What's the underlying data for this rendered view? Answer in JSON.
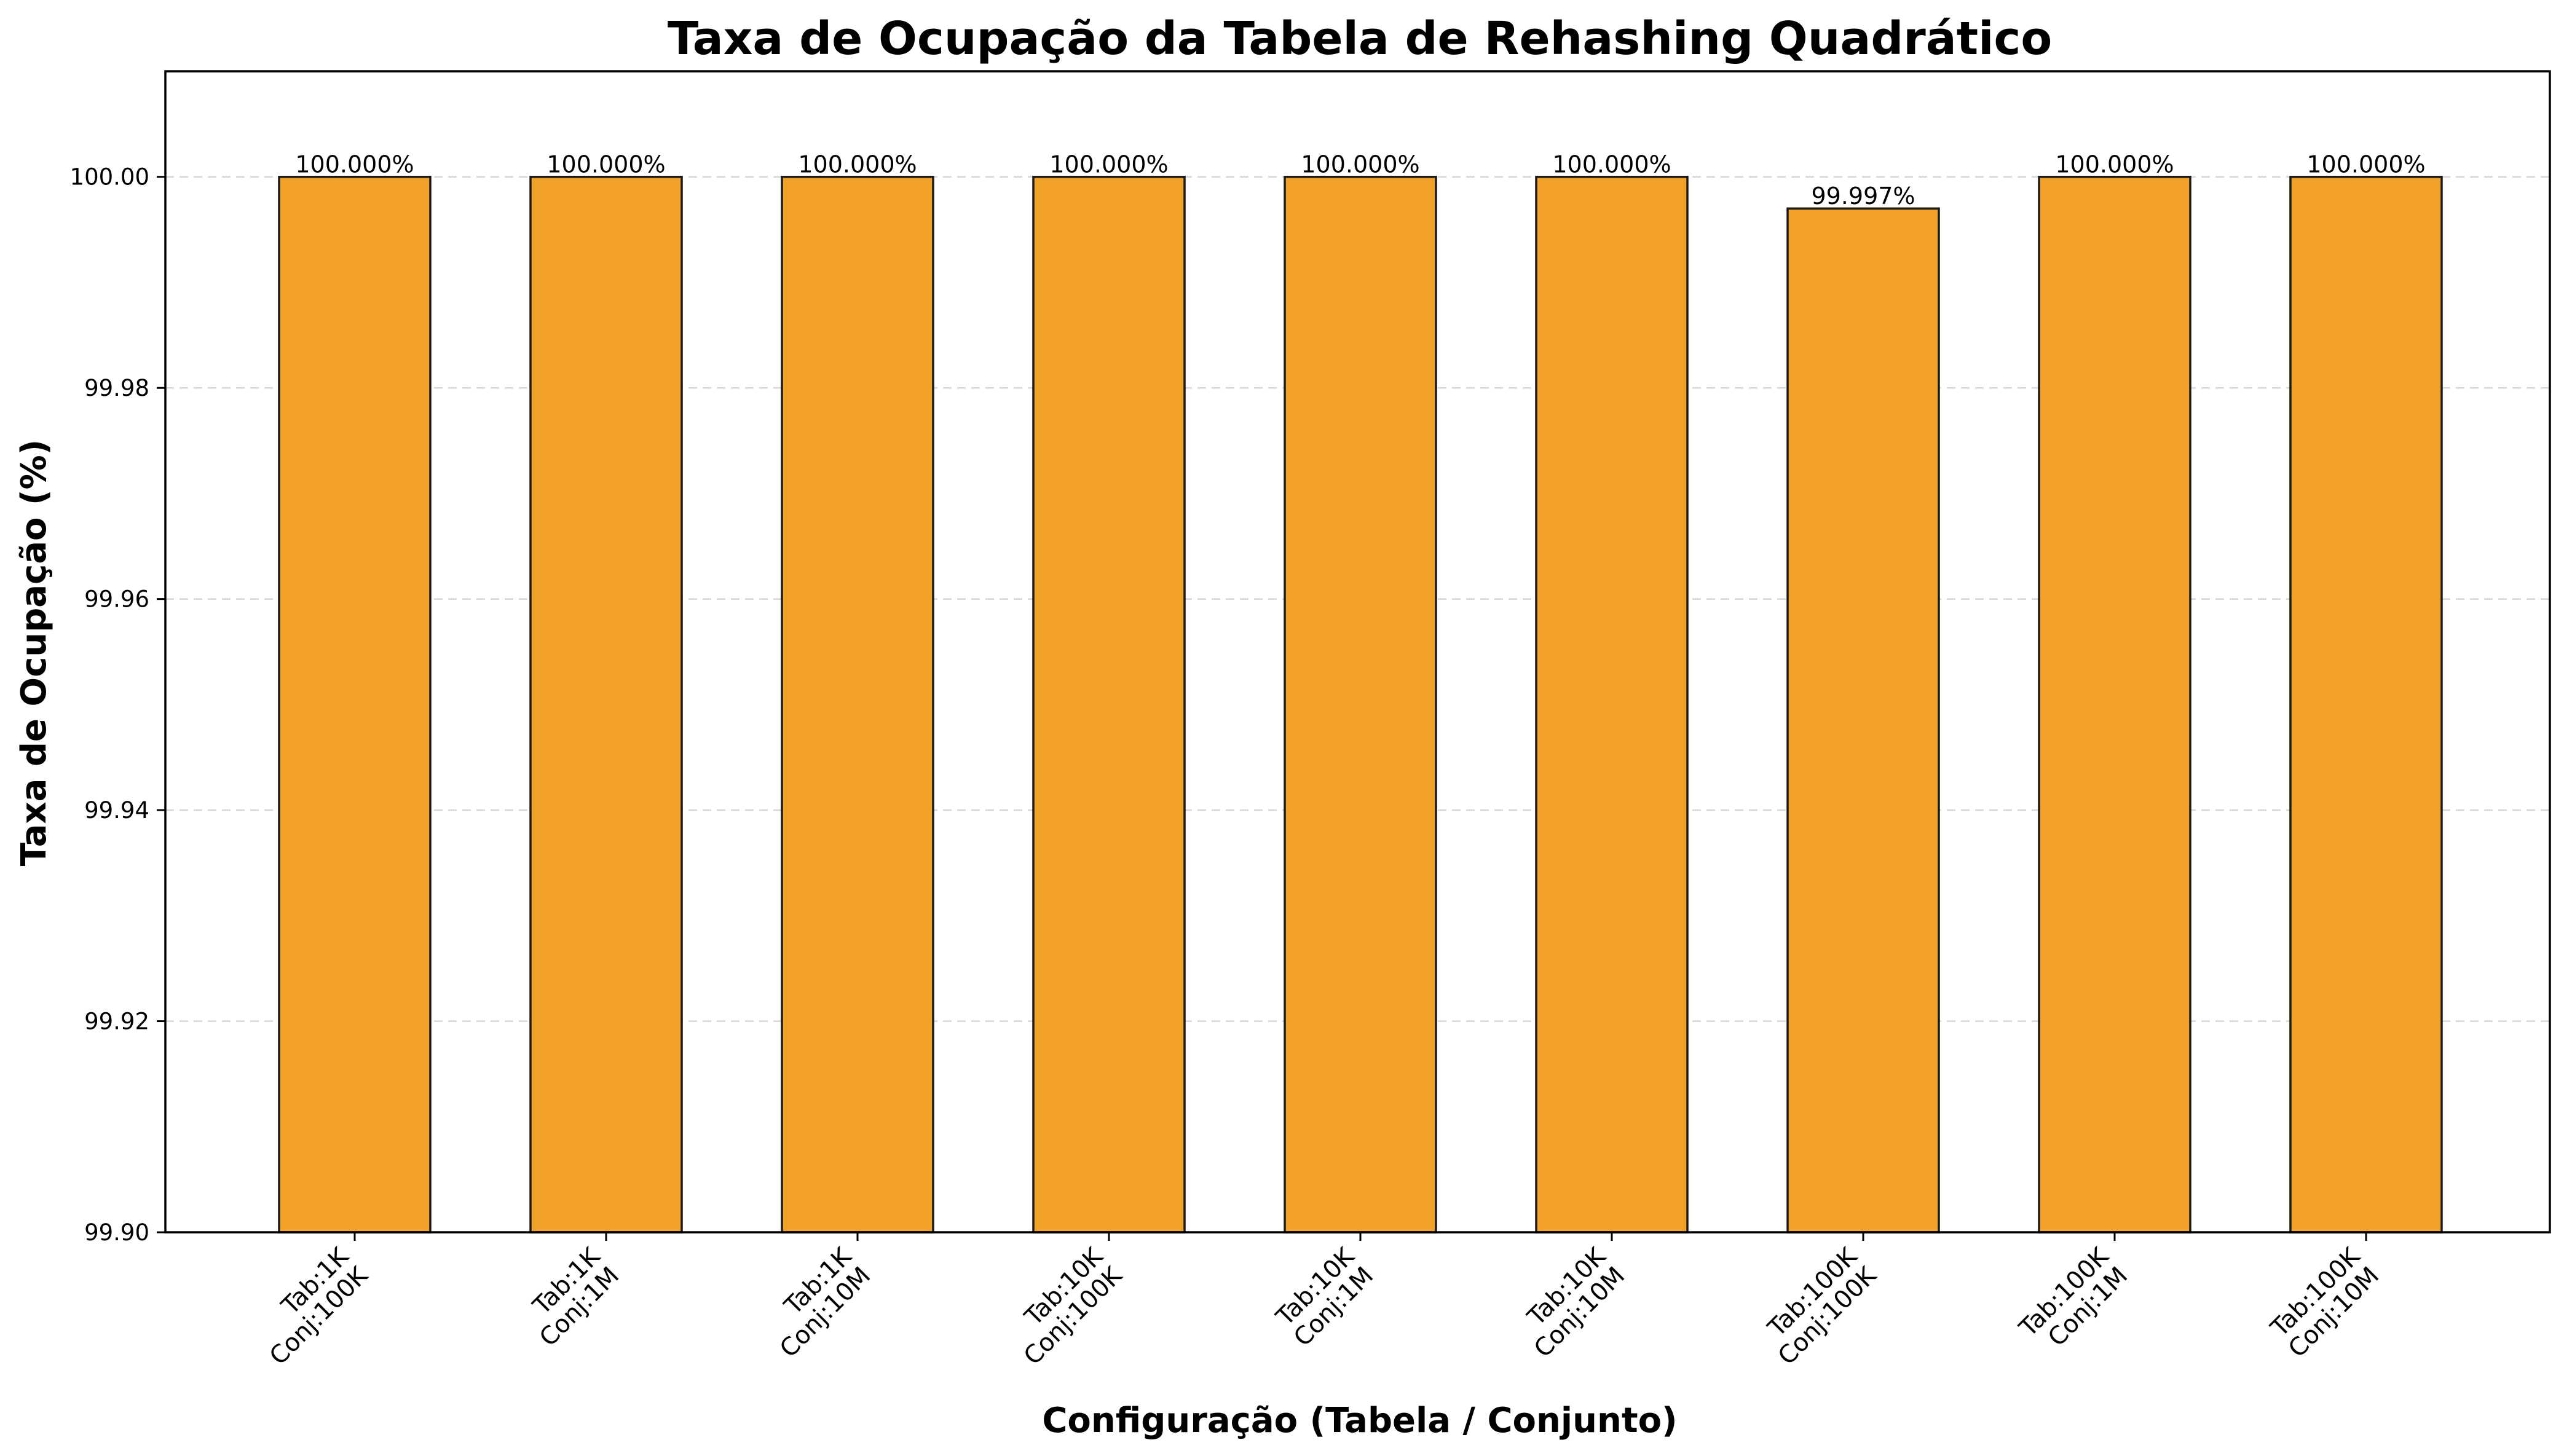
{
  "chart_data": {
    "type": "bar",
    "title": "Taxa de Ocupação da Tabela de Rehashing Quadrático",
    "xlabel": "Configuração (Tabela / Conjunto)",
    "ylabel": "Taxa de Ocupação (%)",
    "categories": [
      [
        "Tab:1K",
        "Conj:100K"
      ],
      [
        "Tab:1K",
        "Conj:1M"
      ],
      [
        "Tab:1K",
        "Conj:10M"
      ],
      [
        "Tab:10K",
        "Conj:100K"
      ],
      [
        "Tab:10K",
        "Conj:1M"
      ],
      [
        "Tab:10K",
        "Conj:10M"
      ],
      [
        "Tab:100K",
        "Conj:100K"
      ],
      [
        "Tab:100K",
        "Conj:1M"
      ],
      [
        "Tab:100K",
        "Conj:10M"
      ]
    ],
    "values": [
      100.0,
      100.0,
      100.0,
      100.0,
      100.0,
      100.0,
      99.997,
      100.0,
      100.0
    ],
    "value_labels": [
      "100.000%",
      "100.000%",
      "100.000%",
      "100.000%",
      "100.000%",
      "100.000%",
      "99.997%",
      "100.000%",
      "100.000%"
    ],
    "ylim": [
      99.9,
      100.01
    ],
    "yticks": [
      99.9,
      99.92,
      99.94,
      99.96,
      99.98,
      100.0
    ],
    "ytick_labels": [
      "99.90",
      "99.92",
      "99.94",
      "99.96",
      "99.98",
      "100.00"
    ],
    "grid": "y-dashed",
    "bar_color": "#f2a129",
    "edge_color": "#1a1a1a"
  }
}
